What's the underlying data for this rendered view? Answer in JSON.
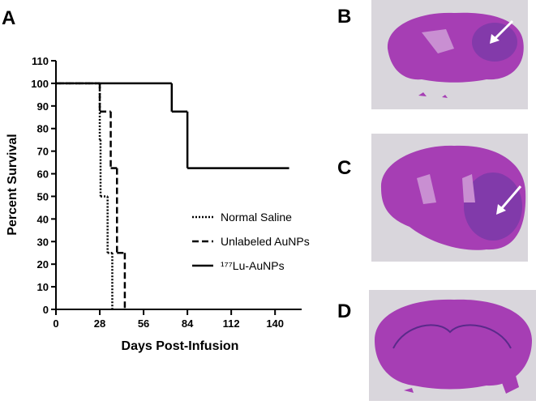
{
  "chart_data": {
    "type": "step",
    "panel_label": "A",
    "xlabel": "Days Post-Infusion",
    "ylabel": "Percent Survival",
    "xlim": [
      0,
      157
    ],
    "ylim": [
      0,
      110
    ],
    "xticks": [
      0,
      28,
      56,
      84,
      112,
      140
    ],
    "yticks": [
      0,
      10,
      20,
      30,
      40,
      50,
      60,
      70,
      80,
      90,
      100,
      110
    ],
    "series": [
      {
        "name": "Normal Saline",
        "style": "dotted",
        "color": "#000000",
        "x": [
          0,
          28,
          28.5,
          33,
          36
        ],
        "values": [
          100,
          75,
          50,
          25,
          0
        ]
      },
      {
        "name": "Unlabeled AuNPs",
        "style": "dashed",
        "color": "#000000",
        "x": [
          0,
          28,
          35,
          39,
          44
        ],
        "values": [
          100,
          87.5,
          62.5,
          25,
          0
        ]
      },
      {
        "name": "¹⁷⁷Lu-AuNPs",
        "style": "solid",
        "color": "#000000",
        "x": [
          0,
          74,
          84,
          149
        ],
        "values": [
          100,
          87.5,
          62.5,
          62.5
        ]
      }
    ]
  },
  "images": [
    {
      "label": "B"
    },
    {
      "label": "C"
    },
    {
      "label": "D"
    }
  ]
}
